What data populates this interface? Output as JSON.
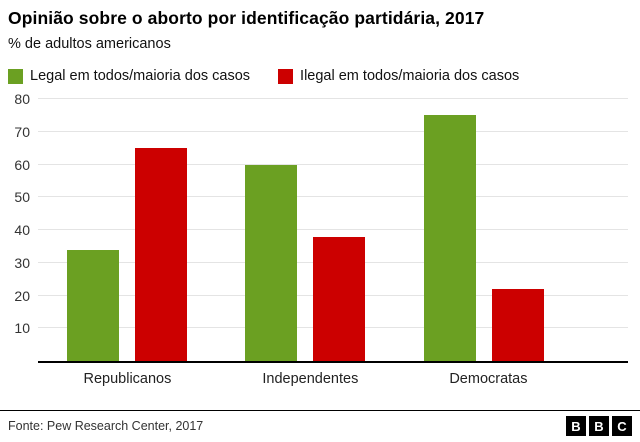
{
  "chart_data": {
    "type": "bar",
    "title": "Opinião sobre o aborto por identificação partidária, 2017",
    "subtitle": "% de adultos americanos",
    "categories": [
      "Republicanos",
      "Independentes",
      "Democratas"
    ],
    "series": [
      {
        "name": "Legal em todos/maioria dos casos",
        "color": "#6ba022",
        "values": [
          34,
          60,
          75
        ]
      },
      {
        "name": "Ilegal em todos/maioria dos casos",
        "color": "#cc0000",
        "values": [
          65,
          38,
          22
        ]
      }
    ],
    "xlabel": "",
    "ylabel": "",
    "ylim": [
      0,
      80
    ],
    "yticks": [
      10,
      20,
      30,
      40,
      50,
      60,
      70,
      80
    ],
    "grid": true,
    "legend_position": "top"
  },
  "footer": {
    "source": "Fonte: Pew Research Center, 2017",
    "logo_letters": [
      "B",
      "B",
      "C"
    ]
  }
}
